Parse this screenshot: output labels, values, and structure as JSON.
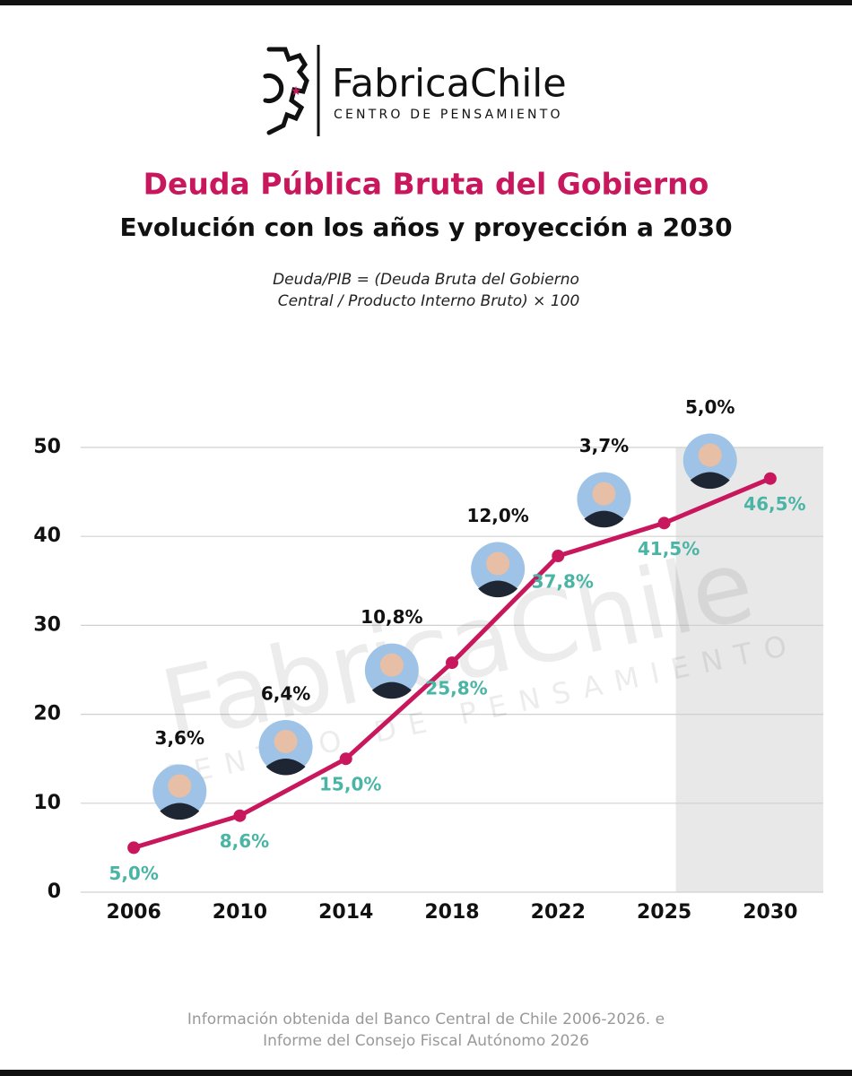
{
  "brand": {
    "name": "FabricaChile",
    "tagline": "CENTRO DE PENSAMIENTO"
  },
  "chart_data": {
    "type": "line",
    "title": "Deuda Pública Bruta del Gobierno",
    "subtitle": "Evolución con los años y proyección a 2030",
    "formula": [
      "Deuda/PIB = (Deuda Bruta del Gobierno",
      "Central / Producto Interno Bruto) × 100"
    ],
    "categories": [
      "2006",
      "2010",
      "2014",
      "2018",
      "2022",
      "2025",
      "2030"
    ],
    "values": [
      5.0,
      8.6,
      15.0,
      25.8,
      37.8,
      41.5,
      46.5
    ],
    "value_labels": [
      "5,0%",
      "8,6%",
      "15,0%",
      "25,8%",
      "37,8%",
      "41,5%",
      "46,5%"
    ],
    "color": "#c8175d",
    "label_color": "#4bb5a5",
    "increments": [
      {
        "value": 3.6,
        "label": "3,6%"
      },
      {
        "value": 6.4,
        "label": "6,4%"
      },
      {
        "value": 10.8,
        "label": "10,8%"
      },
      {
        "value": 12.0,
        "label": "12,0%"
      },
      {
        "value": 3.7,
        "label": "3,7%"
      },
      {
        "value": 5.0,
        "label": "5,0%"
      }
    ],
    "projection": "2030",
    "ylim": [
      0,
      50
    ],
    "yticks": [
      0,
      10,
      20,
      30,
      40,
      50
    ],
    "grid": true,
    "source": [
      "Información obtenida del Banco Central de Chile 2006-2026.  e",
      "Informe del Consejo Fiscal Autónomo 2026"
    ]
  }
}
